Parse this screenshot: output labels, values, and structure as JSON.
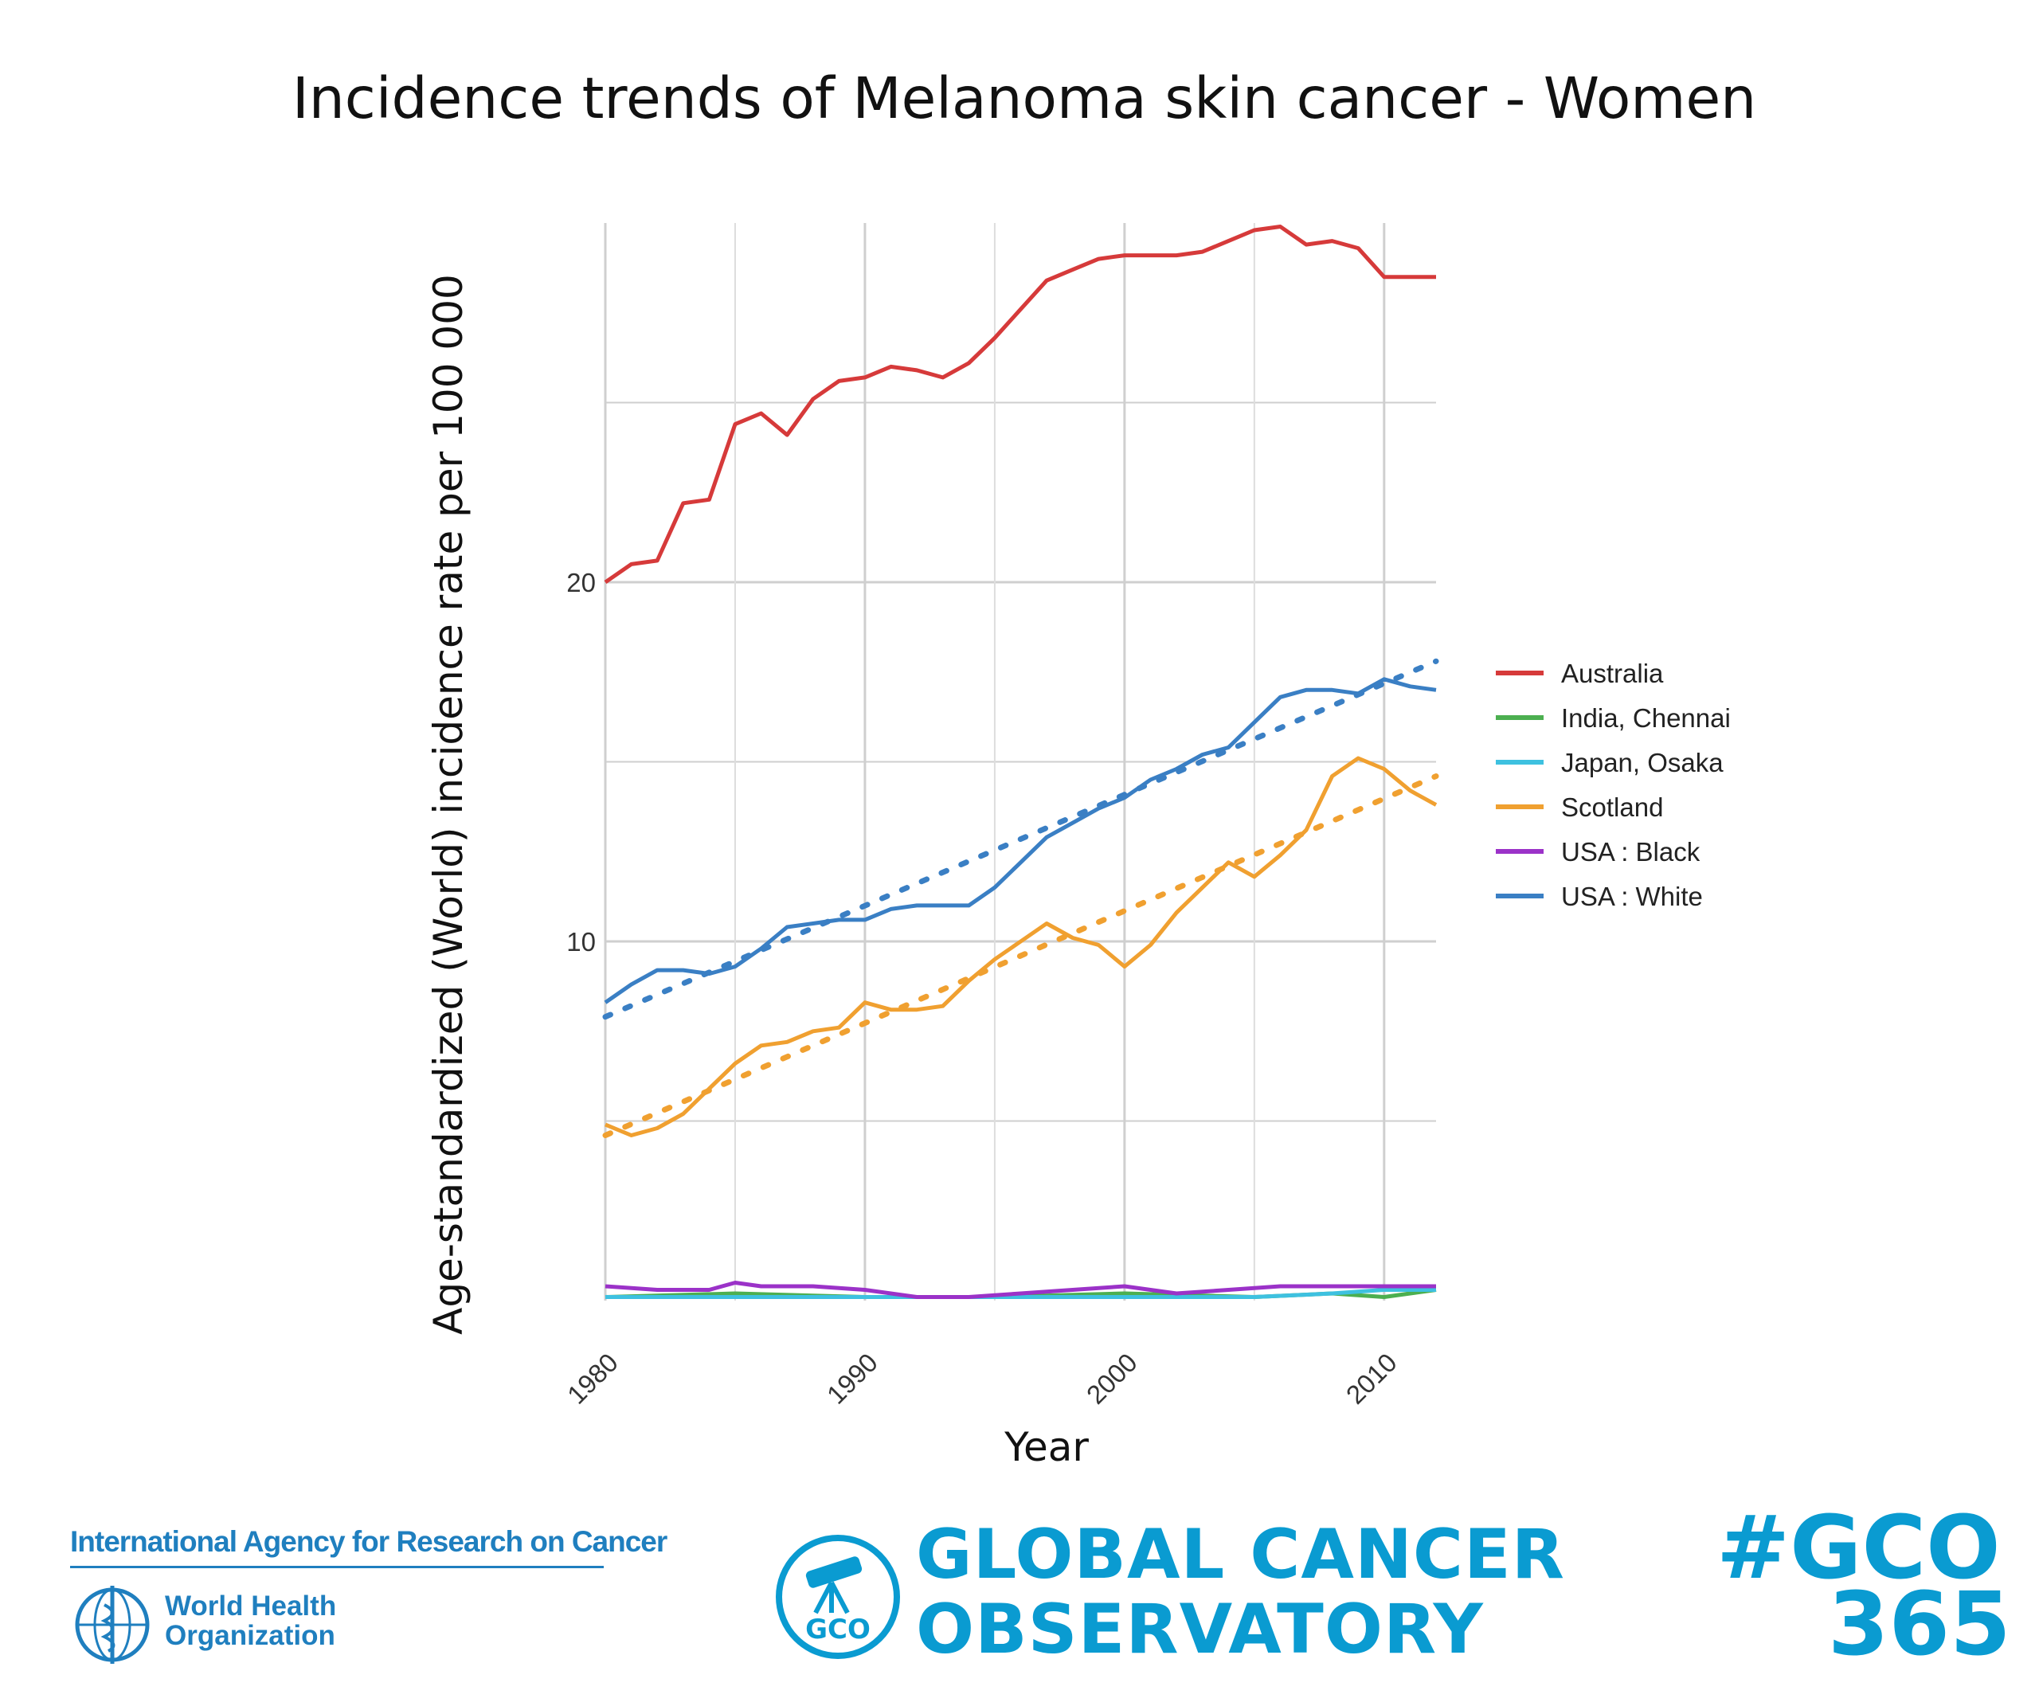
{
  "chart_data": {
    "type": "line",
    "title": "Incidence trends of Melanoma skin cancer - Women",
    "xlabel": "Year",
    "ylabel": "Age-standardized (World) incidence rate per 100 000",
    "xlim": [
      1980,
      2012
    ],
    "ylim": [
      0,
      30
    ],
    "x_ticks": [
      "1980",
      "1990",
      "2000",
      "2010"
    ],
    "y_ticks": [
      "10",
      "20"
    ],
    "grid": true,
    "legend_position": "right",
    "series": [
      {
        "name": "Australia",
        "color": "#d63a3a",
        "x": [
          1980,
          1981,
          1982,
          1983,
          1984,
          1985,
          1986,
          1987,
          1988,
          1989,
          1990,
          1991,
          1992,
          1993,
          1994,
          1995,
          1996,
          1997,
          1998,
          1999,
          2000,
          2001,
          2002,
          2003,
          2004,
          2005,
          2006,
          2007,
          2008,
          2009,
          2010,
          2011,
          2012
        ],
        "y": [
          20.0,
          20.5,
          20.6,
          22.2,
          22.3,
          24.4,
          24.7,
          24.1,
          25.1,
          25.6,
          25.7,
          26.0,
          25.9,
          25.7,
          26.1,
          26.8,
          27.6,
          28.4,
          28.7,
          29.0,
          29.1,
          29.1,
          29.1,
          29.2,
          29.5,
          29.8,
          29.9,
          29.4,
          29.5,
          29.3,
          28.5,
          28.5,
          28.5
        ]
      },
      {
        "name": "India, Chennai",
        "color": "#4caf50",
        "x": [
          1980,
          1985,
          1990,
          1995,
          2000,
          2005,
          2008,
          2010,
          2012
        ],
        "y": [
          0.1,
          0.2,
          0.1,
          0.1,
          0.2,
          0.1,
          0.2,
          0.1,
          0.3
        ]
      },
      {
        "name": "Japan, Osaka",
        "color": "#3ec1e0",
        "x": [
          1980,
          1985,
          1990,
          1995,
          2000,
          2005,
          2008,
          2010,
          2012
        ],
        "y": [
          0.1,
          0.1,
          0.1,
          0.1,
          0.1,
          0.1,
          0.2,
          0.3,
          0.3
        ]
      },
      {
        "name": "Scotland",
        "color": "#f0a030",
        "x": [
          1980,
          1981,
          1982,
          1983,
          1984,
          1985,
          1986,
          1987,
          1988,
          1989,
          1990,
          1991,
          1992,
          1993,
          1994,
          1995,
          1996,
          1997,
          1998,
          1999,
          2000,
          2001,
          2002,
          2003,
          2004,
          2005,
          2006,
          2007,
          2008,
          2009,
          2010,
          2011,
          2012
        ],
        "y": [
          4.9,
          4.6,
          4.8,
          5.2,
          5.9,
          6.6,
          7.1,
          7.2,
          7.5,
          7.6,
          8.3,
          8.1,
          8.1,
          8.2,
          8.9,
          9.5,
          10.0,
          10.5,
          10.1,
          9.9,
          9.3,
          9.9,
          10.8,
          11.5,
          12.2,
          11.8,
          12.4,
          13.1,
          14.6,
          15.1,
          14.8,
          14.2,
          13.8
        ],
        "trend": [
          4.6,
          14.6
        ]
      },
      {
        "name": "USA : Black",
        "color": "#9b32c8",
        "x": [
          1980,
          1982,
          1984,
          1985,
          1986,
          1988,
          1990,
          1992,
          1994,
          1996,
          1998,
          2000,
          2002,
          2004,
          2006,
          2008,
          2010,
          2012
        ],
        "y": [
          0.4,
          0.3,
          0.3,
          0.5,
          0.4,
          0.4,
          0.3,
          0.1,
          0.1,
          0.2,
          0.3,
          0.4,
          0.2,
          0.3,
          0.4,
          0.4,
          0.4,
          0.4
        ]
      },
      {
        "name": "USA : White",
        "color": "#3a7fc4",
        "x": [
          1980,
          1981,
          1982,
          1983,
          1984,
          1985,
          1986,
          1987,
          1988,
          1989,
          1990,
          1991,
          1992,
          1993,
          1994,
          1995,
          1996,
          1997,
          1998,
          1999,
          2000,
          2001,
          2002,
          2003,
          2004,
          2005,
          2006,
          2007,
          2008,
          2009,
          2010,
          2011,
          2012
        ],
        "y": [
          8.3,
          8.8,
          9.2,
          9.2,
          9.1,
          9.3,
          9.8,
          10.4,
          10.5,
          10.6,
          10.6,
          10.9,
          11.0,
          11.0,
          11.0,
          11.5,
          12.2,
          12.9,
          13.3,
          13.7,
          14.0,
          14.5,
          14.8,
          15.2,
          15.4,
          16.1,
          16.8,
          17.0,
          17.0,
          16.9,
          17.3,
          17.1,
          17.0
        ],
        "trend": [
          7.9,
          17.8
        ]
      }
    ]
  },
  "footer": {
    "iarc": "International Agency for Research on Cancer",
    "who_line1": "World Health",
    "who_line2": "Organization",
    "gco_badge": "GCO",
    "gco_line1": "GLOBAL CANCER",
    "gco_line2": "OBSERVATORY",
    "hashtag_line1": "#GCO",
    "hashtag_line2": "365"
  }
}
